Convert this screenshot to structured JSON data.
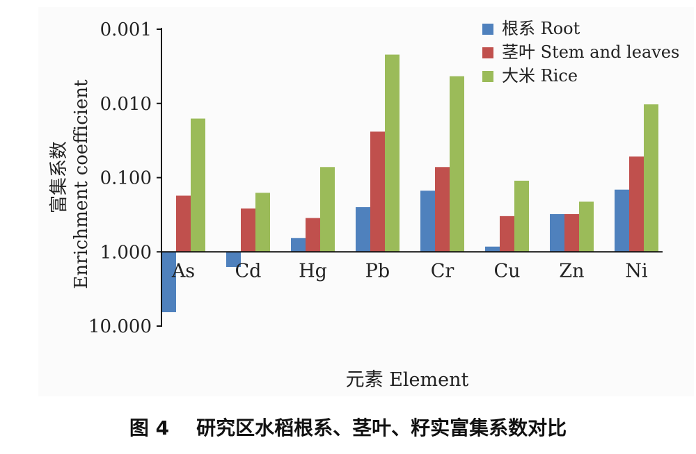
{
  "chart_data": {
    "type": "bar",
    "yscale": "log-reversed",
    "baseline": 1.0,
    "ylim": [
      0.001,
      10.0
    ],
    "yticks": [
      0.001,
      0.01,
      0.1,
      1.0,
      10.0
    ],
    "ytick_labels": [
      "0.001",
      "0.010",
      "0.100",
      "1.000",
      "10.000"
    ],
    "ylabel_cn": "富集系数",
    "ylabel_en": "Enrichment coefficient",
    "xlabel": "元素 Element",
    "categories": [
      "As",
      "Cd",
      "Hg",
      "Pb",
      "Cr",
      "Cu",
      "Zn",
      "Ni"
    ],
    "series": [
      {
        "name": "根系 Root",
        "color": "#4f81bd",
        "values": [
          6.5,
          1.6,
          0.65,
          0.25,
          0.15,
          0.85,
          0.31,
          0.145
        ]
      },
      {
        "name": "茎叶 Stem and leaves",
        "color": "#c0504d",
        "values": [
          0.175,
          0.26,
          0.35,
          0.024,
          0.072,
          0.33,
          0.31,
          0.052
        ]
      },
      {
        "name": "大米 Rice",
        "color": "#9bbb59",
        "values": [
          0.016,
          0.16,
          0.072,
          0.0022,
          0.0043,
          0.11,
          0.21,
          0.0103
        ]
      }
    ],
    "legend_position": "top-right",
    "grid": false
  },
  "caption": "图 4    研究区水稻根系、茎叶、籽实富集系数对比"
}
